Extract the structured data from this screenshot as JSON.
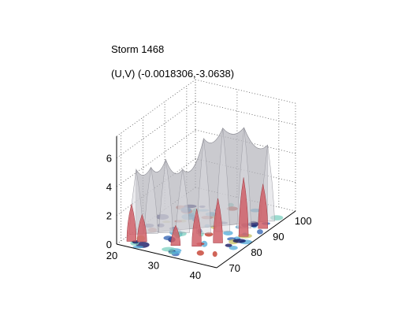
{
  "chart_data": {
    "type": "surface3d",
    "title": "Storm 1468",
    "subtitle": "(U,V) (-0.0018306,-3.0638)",
    "xlabel": "",
    "ylabel": "",
    "zlabel": "",
    "x_ticks": [
      "20",
      "30",
      "40"
    ],
    "y_ticks": [
      "70",
      "80",
      "90",
      "100"
    ],
    "z_ticks": [
      "0",
      "2",
      "4",
      "6"
    ],
    "xlim": [
      20,
      44
    ],
    "ylim": [
      68,
      104
    ],
    "zlim": [
      0,
      7.5
    ],
    "grid": true,
    "series": [
      {
        "label_color": "#b5b5bd",
        "peaks": [
          {
            "x": 21.0,
            "y": 75.0,
            "z": 4.5
          },
          {
            "x": 23.5,
            "y": 77.0,
            "z": 4.6
          },
          {
            "x": 26.0,
            "y": 79.0,
            "z": 5.1
          },
          {
            "x": 29.0,
            "y": 81.0,
            "z": 4.4
          },
          {
            "x": 33.0,
            "y": 83.0,
            "z": 6.6
          },
          {
            "x": 36.0,
            "y": 86.0,
            "z": 7.2
          },
          {
            "x": 39.0,
            "y": 90.0,
            "z": 7.0
          },
          {
            "x": 41.5,
            "y": 96.0,
            "z": 5.3
          }
        ]
      },
      {
        "label_color": "#d06068",
        "peaks": [
          {
            "x": 22.0,
            "y": 71.0,
            "z": 2.6
          },
          {
            "x": 24.0,
            "y": 72.0,
            "z": 1.9
          },
          {
            "x": 31.0,
            "y": 74.0,
            "z": 1.4
          },
          {
            "x": 35.0,
            "y": 76.0,
            "z": 2.6
          },
          {
            "x": 38.0,
            "y": 80.0,
            "z": 3.1
          },
          {
            "x": 41.0,
            "y": 86.0,
            "z": 4.1
          },
          {
            "x": 42.5,
            "y": 92.0,
            "z": 3.1
          }
        ]
      }
    ],
    "base_colors": [
      "#0a0a5a",
      "#2c5fb0",
      "#4fa8d8",
      "#7cd0c0",
      "#c8c060",
      "#c03020"
    ]
  }
}
